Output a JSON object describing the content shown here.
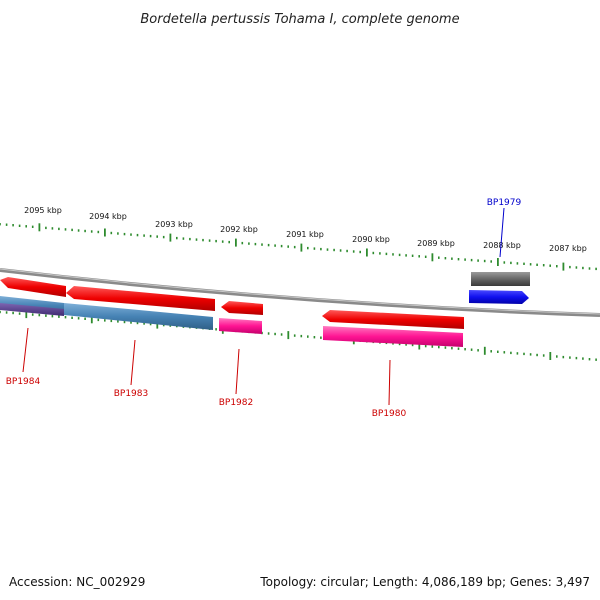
{
  "title": "Bordetella pertussis Tohama I, complete genome",
  "tick_labels": [
    "2095 kbp",
    "2094 kbp",
    "2093 kbp",
    "2092 kbp",
    "2091 kbp",
    "2090 kbp",
    "2089 kbp",
    "2088 kbp",
    "2087 kbp"
  ],
  "genes": [
    {
      "name": "BP1984",
      "color": "#cc0000"
    },
    {
      "name": "BP1983",
      "color": "#cc0000"
    },
    {
      "name": "BP1982",
      "color": "#cc0000"
    },
    {
      "name": "BP1980",
      "color": "#cc0000"
    },
    {
      "name": "BP1979",
      "color": "#0000cc"
    }
  ],
  "footer": {
    "accession": "Accession: NC_002929",
    "topology": "Topology: circular; Length: 4,086,189 bp; Genes: 3,497"
  },
  "colors": {
    "backbone": "#7a7a7a",
    "forward_cds": "#ee0000",
    "reverse_cds": "#ff1493",
    "steelblue": "#4682b4",
    "purple": "#5b3f8f",
    "blue_cds": "#1010ee",
    "gray_cds": "#666666",
    "tick": "#2e8b2e"
  }
}
